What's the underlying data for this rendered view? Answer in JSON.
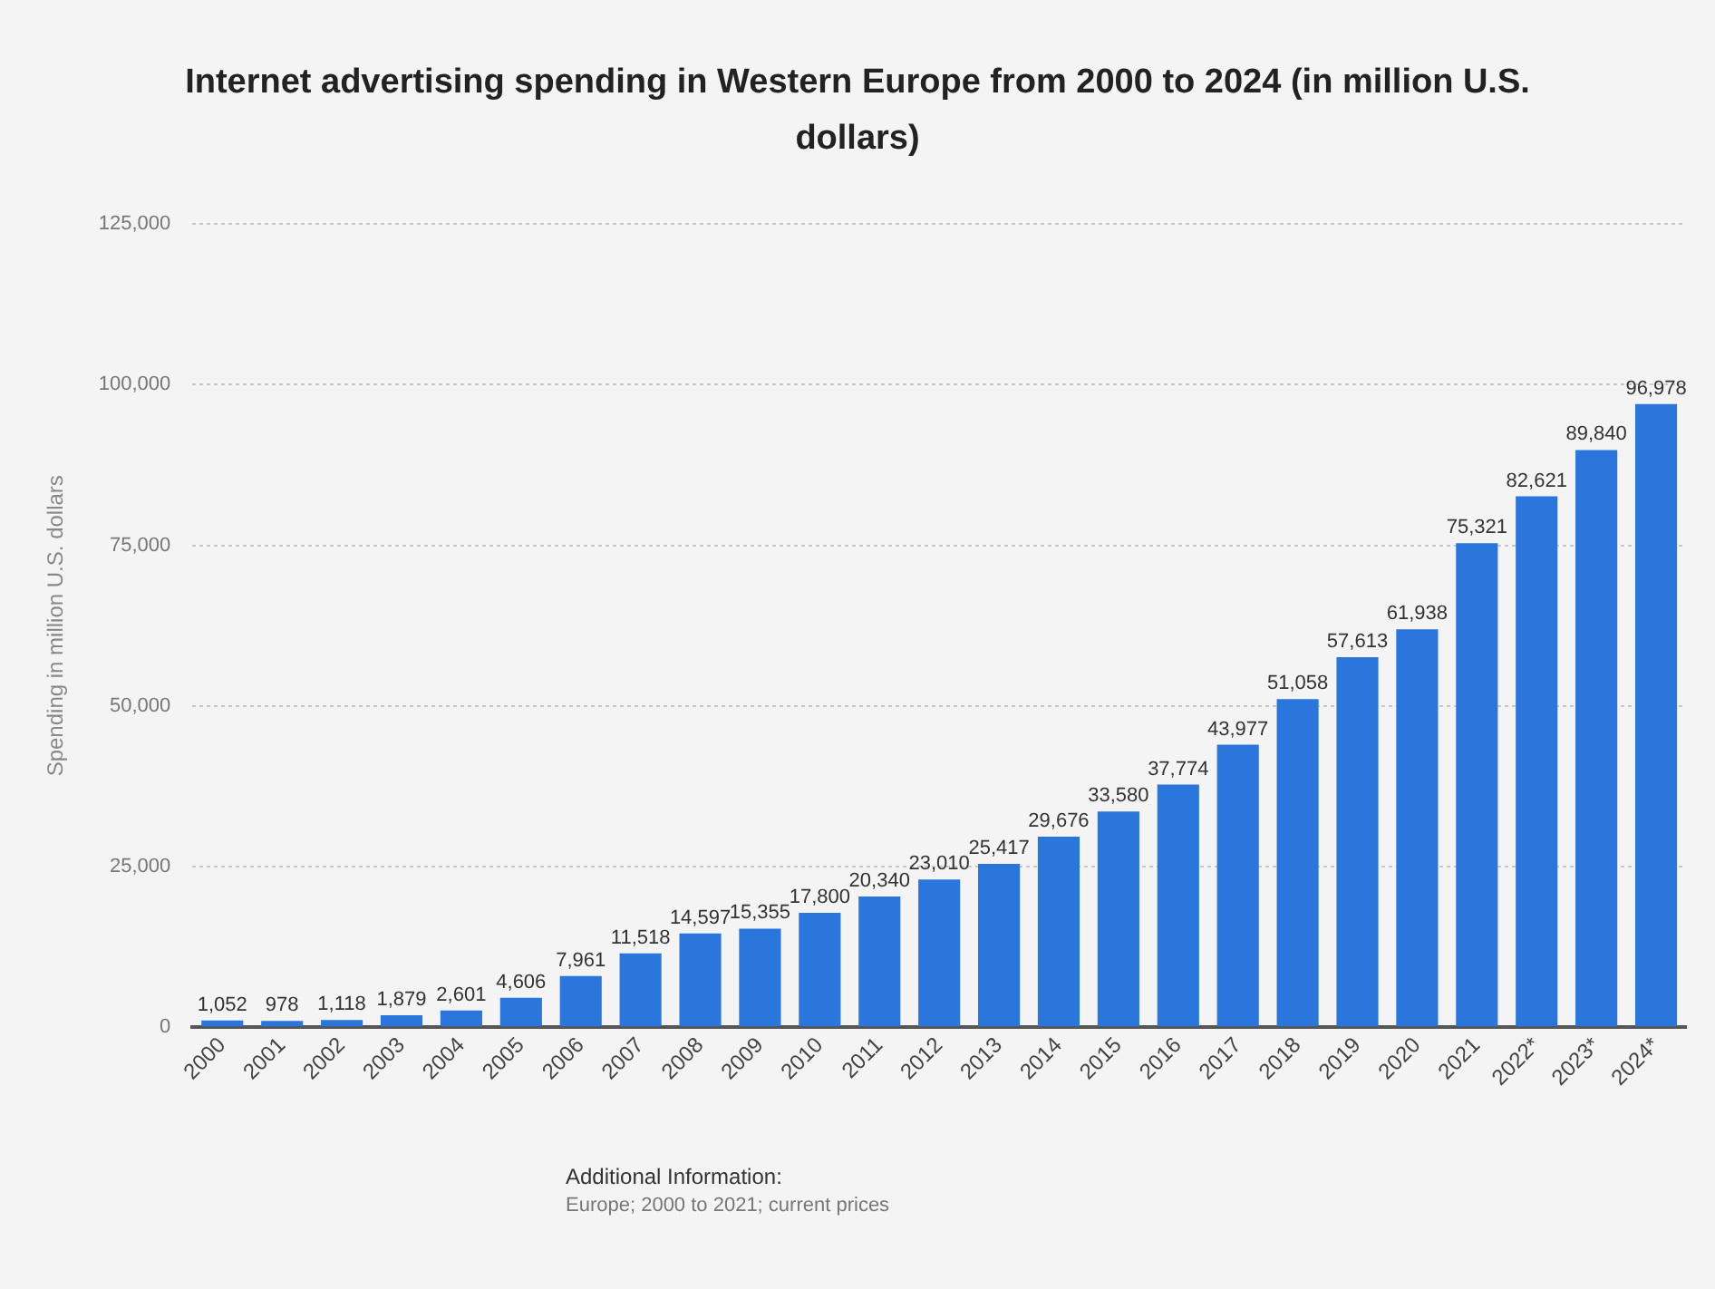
{
  "chart_data": {
    "type": "bar",
    "title": "Internet advertising spending in Western Europe from 2000 to 2024 (in million U.S. dollars)",
    "ylabel": "Spending in million U.S. dollars",
    "categories": [
      "2000",
      "2001",
      "2002",
      "2003",
      "2004",
      "2005",
      "2006",
      "2007",
      "2008",
      "2009",
      "2010",
      "2011",
      "2012",
      "2013",
      "2014",
      "2015",
      "2016",
      "2017",
      "2018",
      "2019",
      "2020",
      "2021",
      "2022*",
      "2023*",
      "2024*"
    ],
    "values": [
      1052,
      978,
      1118,
      1879,
      2601,
      4606,
      7961,
      11518,
      14597,
      15355,
      17800,
      20340,
      23010,
      25417,
      29676,
      33580,
      37774,
      43977,
      51058,
      57613,
      61938,
      75321,
      82621,
      89840,
      96978
    ],
    "color": "#2a76dd",
    "ylim": [
      0,
      125000
    ],
    "yticks": [
      {
        "value": 0,
        "label": "0"
      },
      {
        "value": 25000,
        "label": "25,000"
      },
      {
        "value": 50000,
        "label": "50,000"
      },
      {
        "value": 75000,
        "label": "75,000"
      },
      {
        "value": 100000,
        "label": "100,000"
      },
      {
        "value": 125000,
        "label": "125,000"
      }
    ],
    "value_labels": [
      "1,052",
      "978",
      "1,118",
      "1,879",
      "2,601",
      "4,606",
      "7,961",
      "11,518",
      "14,597",
      "15,355",
      "17,800",
      "20,340",
      "23,010",
      "25,417",
      "29,676",
      "33,580",
      "37,774",
      "43,977",
      "51,058",
      "57,613",
      "61,938",
      "75,321",
      "82,621",
      "89,840",
      "96,978"
    ],
    "grid": "y",
    "legend": false,
    "annotations": [
      "Additional Information:",
      "Europe; 2000 to 2021; current prices"
    ]
  }
}
